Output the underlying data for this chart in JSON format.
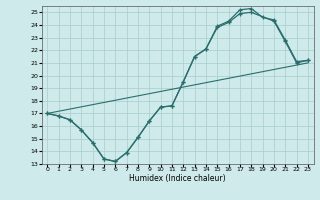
{
  "xlabel": "Humidex (Indice chaleur)",
  "bg_color": "#ceeaea",
  "grid_color": "#a8cccc",
  "line_color": "#2a6e6e",
  "xlim": [
    -0.5,
    23.5
  ],
  "ylim": [
    13,
    25.5
  ],
  "xticks": [
    0,
    1,
    2,
    3,
    4,
    5,
    6,
    7,
    8,
    9,
    10,
    11,
    12,
    13,
    14,
    15,
    16,
    17,
    18,
    19,
    20,
    21,
    22,
    23
  ],
  "yticks": [
    13,
    14,
    15,
    16,
    17,
    18,
    19,
    20,
    21,
    22,
    23,
    24,
    25
  ],
  "baseline_x": [
    0,
    23
  ],
  "baseline_y": [
    17,
    21
  ],
  "line_dip_x": [
    0,
    1,
    2,
    3,
    4,
    5,
    6,
    7,
    8,
    9,
    10,
    11,
    12,
    13,
    14,
    15,
    16,
    17,
    18,
    19,
    20,
    21,
    22,
    23
  ],
  "line_dip_y": [
    17,
    16.8,
    16.5,
    15.7,
    14.7,
    13.4,
    13.2,
    13.9,
    15.1,
    16.4,
    17.5,
    17.6,
    19.5,
    21.5,
    22.1,
    23.9,
    24.3,
    25.2,
    25.3,
    24.6,
    24.4,
    22.8,
    21.1,
    21.2
  ],
  "line_smooth_x": [
    0,
    1,
    2,
    3,
    4,
    5,
    6,
    7,
    8,
    9,
    10,
    11,
    12,
    13,
    14,
    15,
    16,
    17,
    18,
    20,
    21,
    22,
    23
  ],
  "line_smooth_y": [
    17,
    16.8,
    16.5,
    15.7,
    14.7,
    13.4,
    13.2,
    13.9,
    15.1,
    16.4,
    17.5,
    17.6,
    19.5,
    21.5,
    22.1,
    23.8,
    24.2,
    24.9,
    25.0,
    24.3,
    22.7,
    21.0,
    21.2
  ]
}
